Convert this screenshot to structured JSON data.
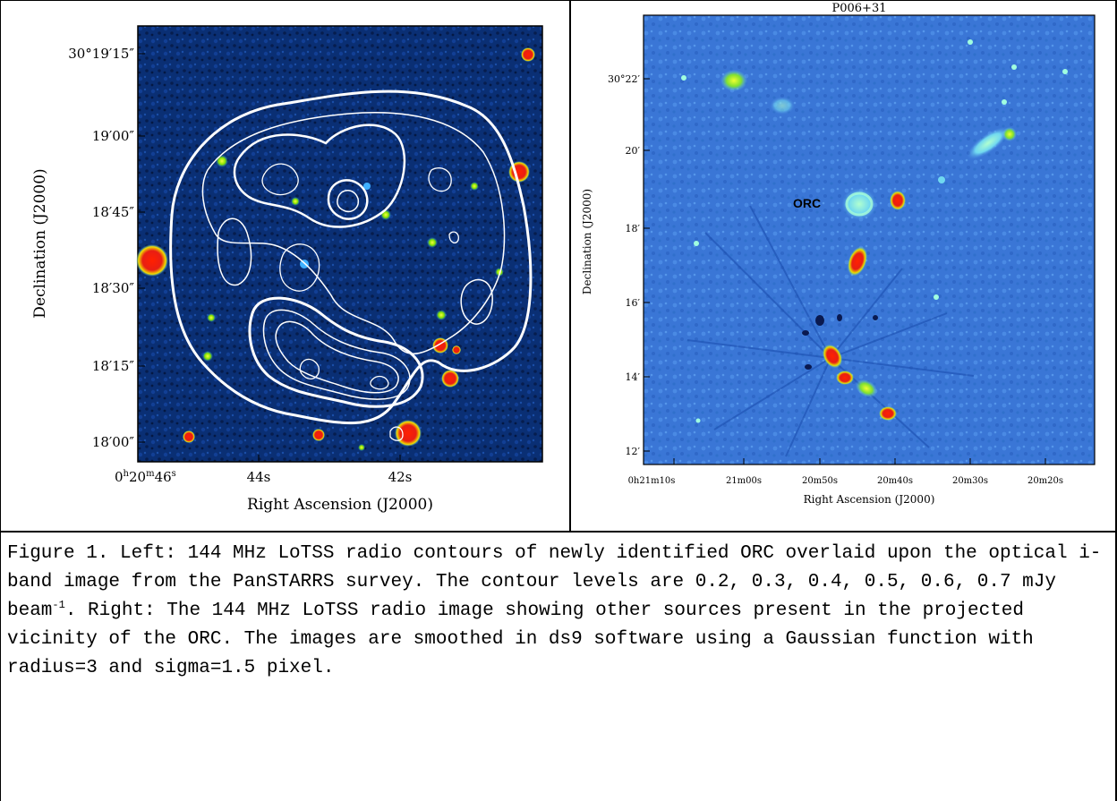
{
  "left_panel": {
    "y_tick_labels": [
      "30°19′15″",
      "19′00″",
      "18′45″",
      "18′30″",
      "18′15″",
      "18′00″"
    ],
    "x_tick_labels": [
      "0h20m46s",
      "44s",
      "42s"
    ],
    "x_tick_label_first": {
      "h": "0",
      "hsup": "h",
      "m": "20",
      "msup": "m",
      "s": "46",
      "ssup": "s"
    },
    "ylabel": "Declination (J2000)",
    "xlabel": "Right Ascension (J2000)"
  },
  "right_panel": {
    "title": "P006+31",
    "y_tick_labels": [
      "30°22′",
      "20′",
      "18′",
      "16′",
      "14′",
      "12′"
    ],
    "x_tick_labels": [
      "0h21m10s",
      "21m00s",
      "20m50s",
      "20m40s",
      "20m30s",
      "20m20s"
    ],
    "ylabel": "Declination (J2000)",
    "xlabel": "Right Ascension (J2000)",
    "annotation": "ORC"
  },
  "caption": {
    "prefix": "Figure 1. Left: 144 MHz LoTSS radio contours of newly identified ORC overlaid upon the optical i-band image from the PanSTARRS survey. The contour levels are 0.2, 0.3, 0.4, 0.5, 0.6, 0.7 mJy beam",
    "sup": "-1",
    "suffix": ". Right: The 144 MHz LoTSS radio image showing other sources present in the projected vicinity of the ORC. The images are smoothed in ds9 software using a Gaussian function with radius=3 and sigma=1.5 pixel."
  },
  "colors": {
    "left_bg": "#0a2d6e",
    "right_bg": "#3b78d8",
    "hot": "#e8201a",
    "warm": "#7fe000",
    "contour": "#ffffff"
  }
}
